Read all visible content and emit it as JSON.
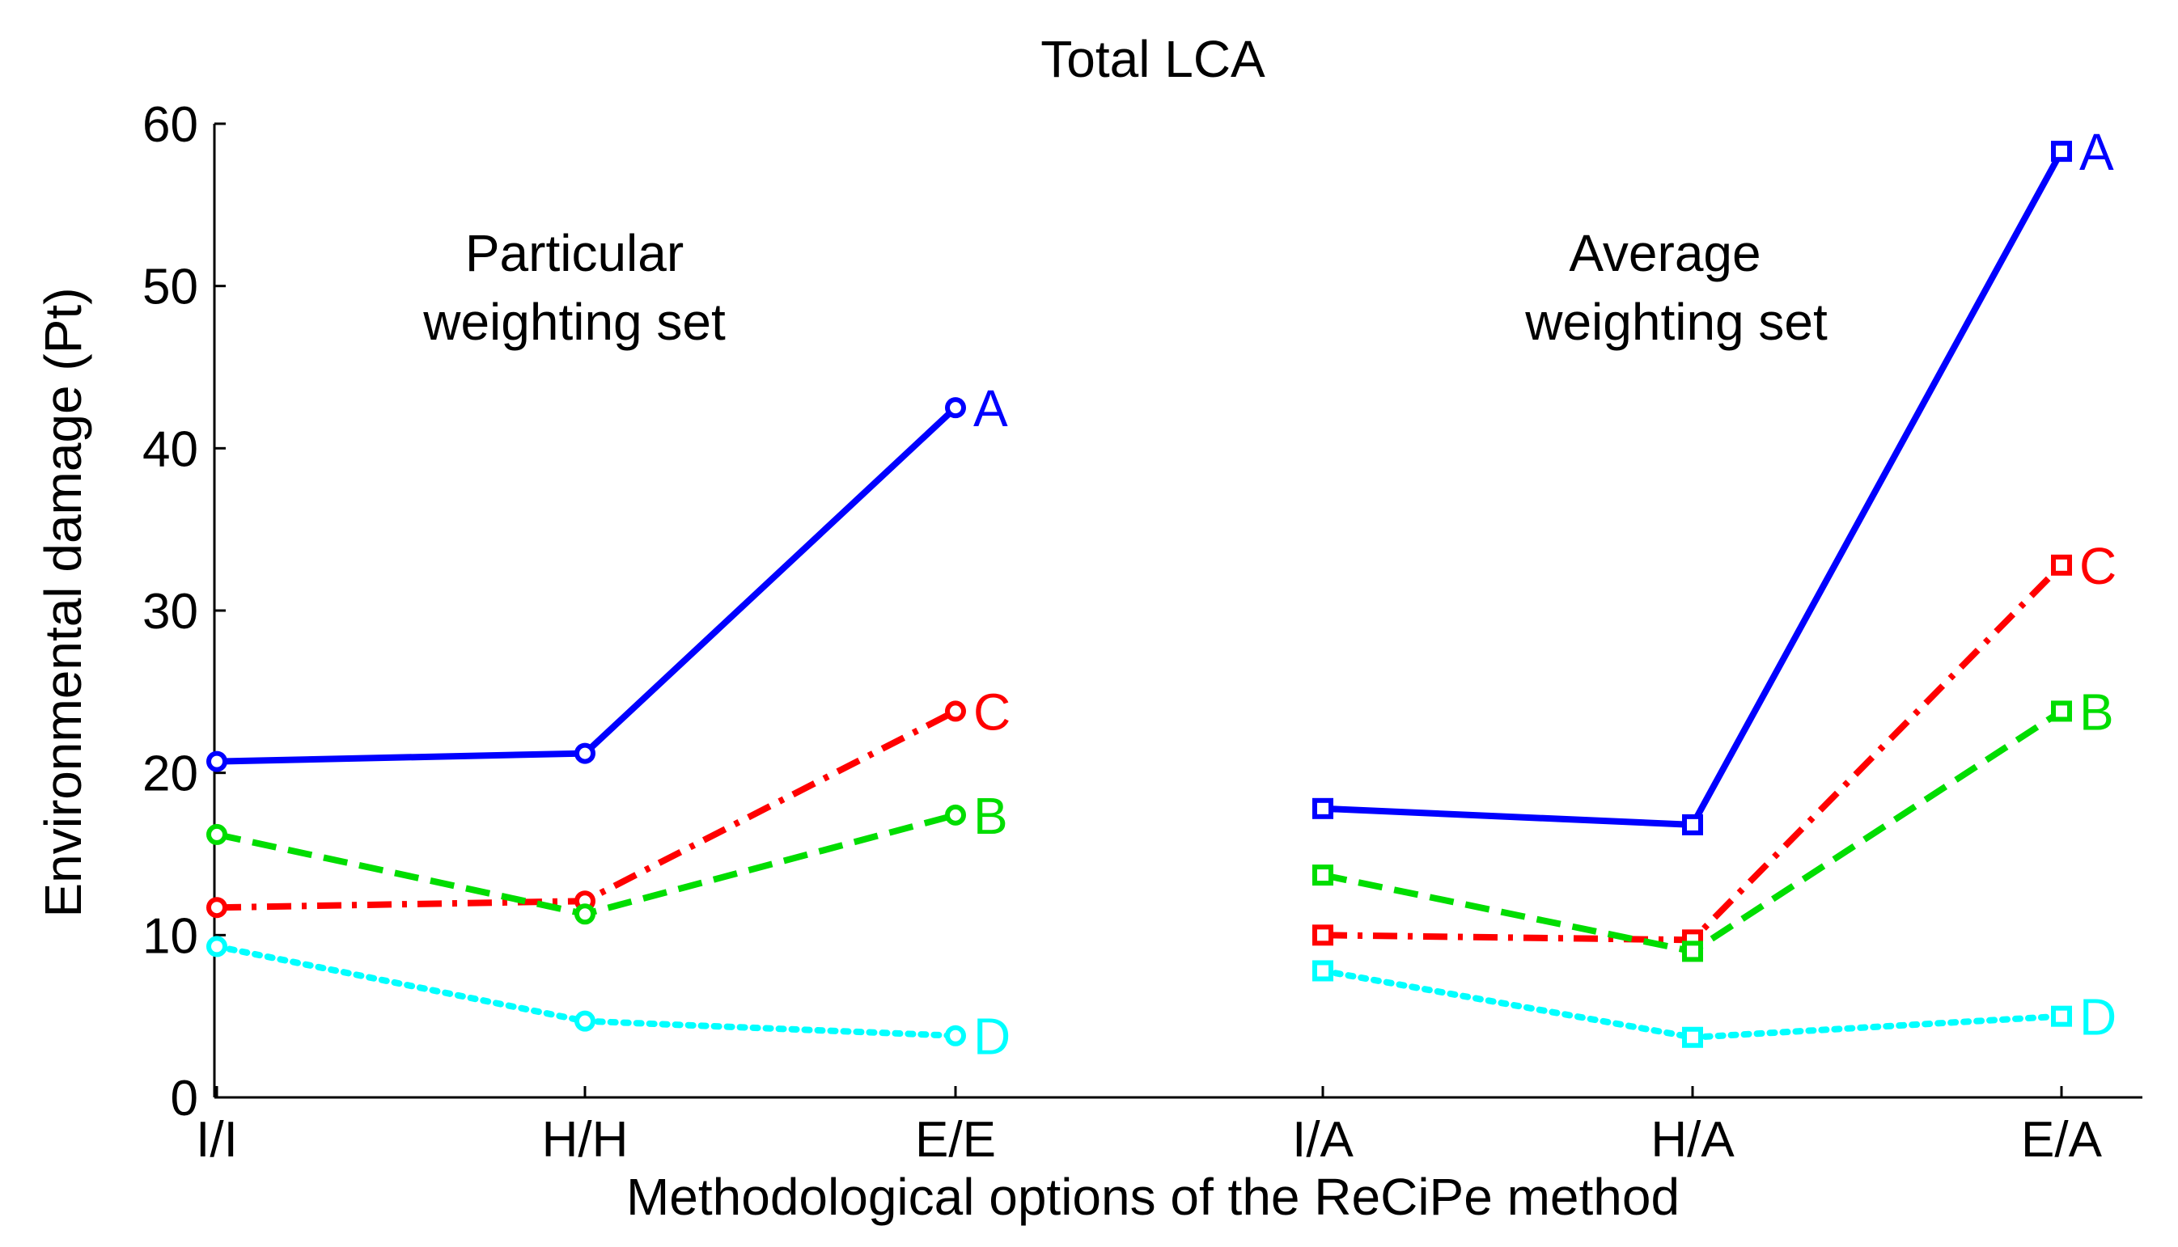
{
  "chart_data": {
    "type": "line",
    "title": "Total LCA",
    "xlabel": "Methodological options of the ReCiPe method",
    "ylabel": "Environmental damage (Pt)",
    "ylim": [
      0,
      60
    ],
    "yticks": [
      0,
      10,
      20,
      30,
      40,
      50,
      60
    ],
    "categories": [
      "I/I",
      "H/H",
      "E/E",
      "I/A",
      "H/A",
      "E/A"
    ],
    "annotations": [
      {
        "line1": "Particular",
        "line2": "weighting set"
      },
      {
        "line1": "Average",
        "line2": "weighting set"
      }
    ],
    "groups": [
      {
        "name": "Particular weighting set",
        "categories": [
          "I/I",
          "H/H",
          "E/E"
        ],
        "marker": "circle",
        "series": [
          {
            "name": "A",
            "color": "#0000ff",
            "dash": "solid",
            "values": [
              20.7,
              21.2,
              42.5
            ]
          },
          {
            "name": "C",
            "color": "#ff0000",
            "dash": "dashdot",
            "values": [
              11.7,
              12.1,
              23.8
            ]
          },
          {
            "name": "B",
            "color": "#00dd00",
            "dash": "dashed",
            "values": [
              16.2,
              11.3,
              17.4
            ]
          },
          {
            "name": "D",
            "color": "#00ffff",
            "dash": "dotted",
            "values": [
              9.3,
              4.7,
              3.8
            ]
          }
        ]
      },
      {
        "name": "Average weighting set",
        "categories": [
          "I/A",
          "H/A",
          "E/A"
        ],
        "marker": "square",
        "series": [
          {
            "name": "A",
            "color": "#0000ff",
            "dash": "solid",
            "values": [
              17.8,
              16.8,
              58.3
            ]
          },
          {
            "name": "C",
            "color": "#ff0000",
            "dash": "dashdot",
            "values": [
              10.0,
              9.7,
              32.8
            ]
          },
          {
            "name": "B",
            "color": "#00dd00",
            "dash": "dashed",
            "values": [
              13.7,
              9.0,
              23.8
            ]
          },
          {
            "name": "D",
            "color": "#00ffff",
            "dash": "dotted",
            "values": [
              7.8,
              3.7,
              5.0
            ]
          }
        ]
      }
    ]
  }
}
